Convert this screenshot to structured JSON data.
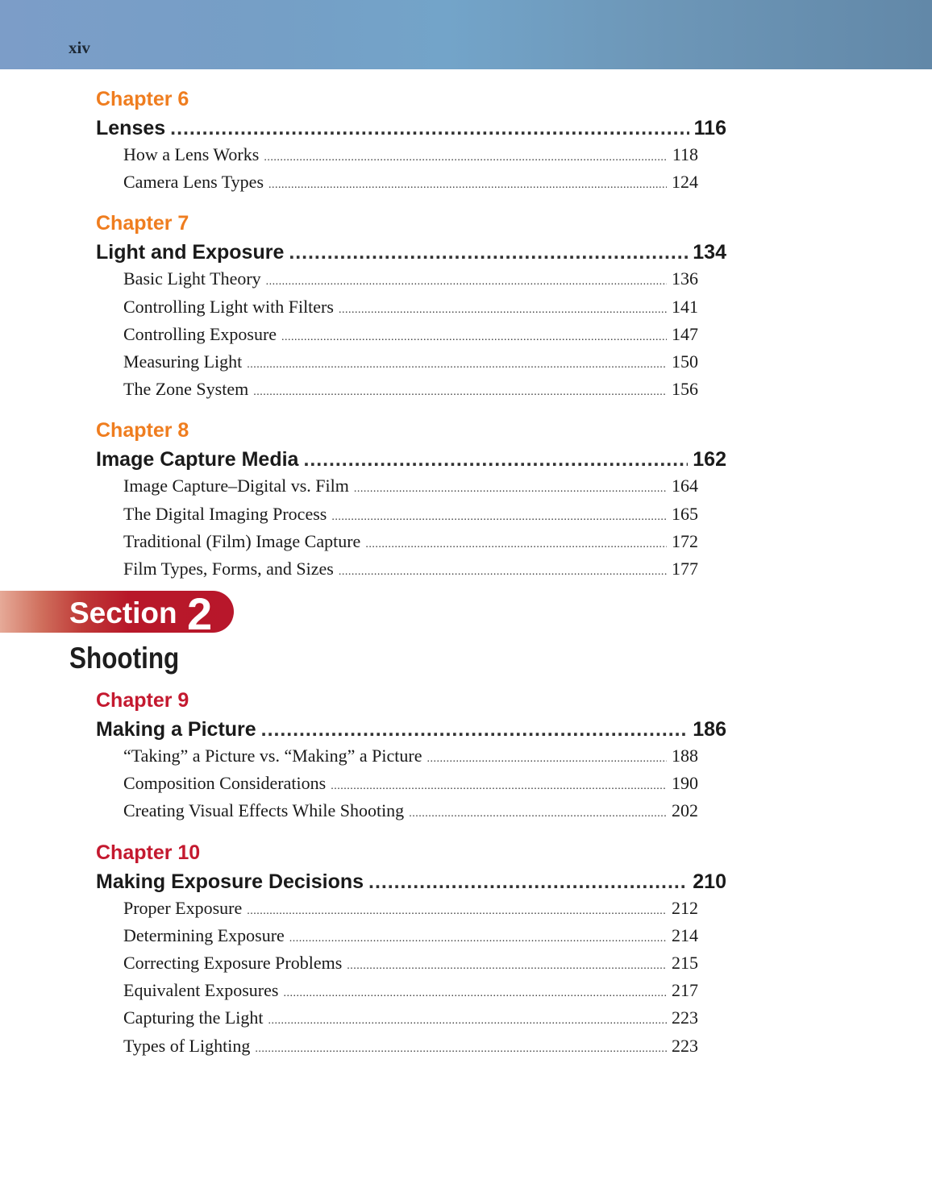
{
  "page_number": "xiv",
  "colors": {
    "chapter_orange": "#ef7d1f",
    "chapter_red": "#c4192f",
    "banner_red": "#b8172b",
    "header_blue": "#739fc6"
  },
  "group1": [
    {
      "label": "Chapter 6",
      "title": "Lenses",
      "page": "116",
      "color": "#ef7d1f",
      "entries": [
        {
          "title": "How a Lens Works",
          "page": "118"
        },
        {
          "title": "Camera Lens Types",
          "page": "124"
        }
      ]
    },
    {
      "label": "Chapter 7",
      "title": "Light and Exposure",
      "page": "134",
      "color": "#ef7d1f",
      "entries": [
        {
          "title": "Basic Light Theory",
          "page": "136"
        },
        {
          "title": "Controlling Light with Filters",
          "page": "141"
        },
        {
          "title": "Controlling Exposure",
          "page": "147"
        },
        {
          "title": "Measuring Light",
          "page": "150"
        },
        {
          "title": "The Zone System",
          "page": "156"
        }
      ]
    },
    {
      "label": "Chapter 8",
      "title": "Image Capture Media",
      "page": "162",
      "color": "#ef7d1f",
      "entries": [
        {
          "title": "Image Capture–Digital vs. Film",
          "page": "164"
        },
        {
          "title": "The Digital Imaging Process",
          "page": "165"
        },
        {
          "title": "Traditional (Film) Image Capture",
          "page": "172"
        },
        {
          "title": "Film Types, Forms, and Sizes",
          "page": "177"
        }
      ]
    }
  ],
  "section": {
    "word": "Section",
    "number": "2",
    "title": "Shooting"
  },
  "group2": [
    {
      "label": "Chapter 9",
      "title": "Making a Picture",
      "page": "186",
      "color": "#c4192f",
      "entries": [
        {
          "title": "“Taking” a Picture vs. “Making” a Picture",
          "page": "188"
        },
        {
          "title": "Composition Considerations",
          "page": "190"
        },
        {
          "title": "Creating Visual Effects While Shooting",
          "page": "202"
        }
      ]
    },
    {
      "label": "Chapter 10",
      "title": "Making Exposure Decisions",
      "page": "210",
      "color": "#c4192f",
      "entries": [
        {
          "title": "Proper Exposure",
          "page": "212"
        },
        {
          "title": "Determining Exposure",
          "page": "214"
        },
        {
          "title": "Correcting Exposure Problems",
          "page": "215"
        },
        {
          "title": "Equivalent Exposures",
          "page": "217"
        },
        {
          "title": "Capturing the Light",
          "page": "223"
        },
        {
          "title": "Types of Lighting",
          "page": "223"
        }
      ]
    }
  ]
}
